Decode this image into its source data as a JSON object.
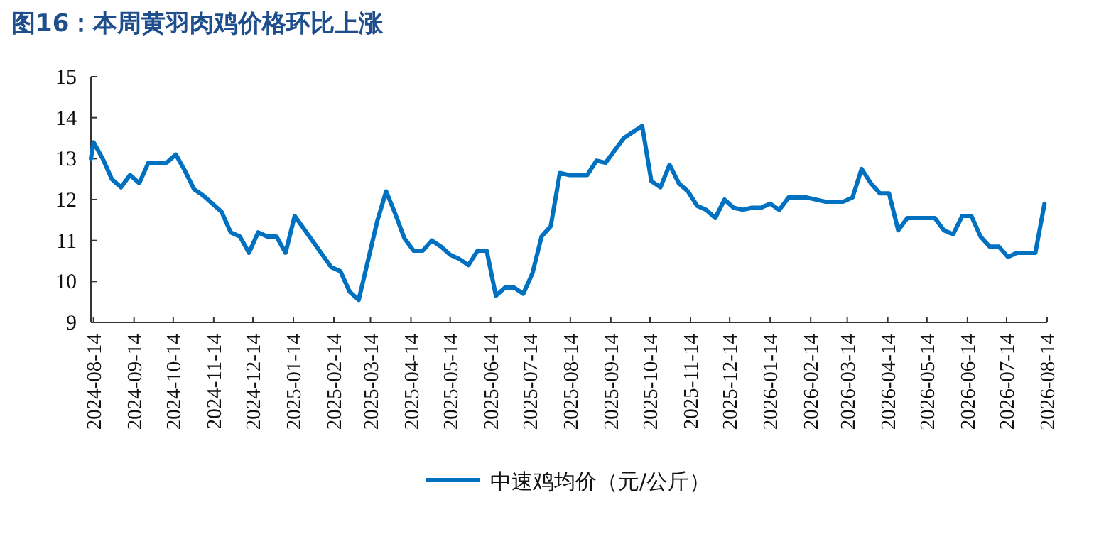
{
  "chart_data": {
    "type": "line",
    "title": "图16：本周黄羽肉鸡价格环比上涨",
    "x": [
      "2024-08-12",
      "2024-08-14",
      "2024-08-21",
      "2024-08-28",
      "2024-09-04",
      "2024-09-11",
      "2024-09-18",
      "2024-09-25",
      "2024-10-09",
      "2024-10-16",
      "2024-10-23",
      "2024-10-30",
      "2024-11-06",
      "2024-11-13",
      "2024-11-20",
      "2024-11-27",
      "2024-12-04",
      "2024-12-11",
      "2024-12-18",
      "2024-12-25",
      "2025-01-01",
      "2025-01-08",
      "2025-01-15",
      "2025-02-12",
      "2025-02-19",
      "2025-02-26",
      "2025-03-05",
      "2025-03-19",
      "2025-03-26",
      "2025-04-02",
      "2025-04-09",
      "2025-04-16",
      "2025-04-23",
      "2025-04-30",
      "2025-05-07",
      "2025-05-14",
      "2025-05-21",
      "2025-05-28",
      "2025-06-04",
      "2025-06-11",
      "2025-06-18",
      "2025-06-25",
      "2025-07-02",
      "2025-07-09",
      "2025-07-16",
      "2025-07-23",
      "2025-07-30",
      "2025-08-06",
      "2025-08-13",
      "2025-08-27",
      "2025-09-03",
      "2025-09-10",
      "2025-09-17",
      "2025-09-24",
      "2025-10-01",
      "2025-10-08",
      "2025-10-15",
      "2025-10-22",
      "2025-10-29",
      "2025-11-05",
      "2025-11-12",
      "2025-11-19",
      "2025-11-26",
      "2025-12-03",
      "2025-12-10",
      "2025-12-17",
      "2025-12-24",
      "2025-12-31",
      "2026-01-07",
      "2026-01-14",
      "2026-01-21",
      "2026-01-28",
      "2026-02-11",
      "2026-02-25",
      "2026-03-11",
      "2026-03-18",
      "2026-03-25",
      "2026-04-01",
      "2026-04-08",
      "2026-04-15",
      "2026-04-22",
      "2026-04-29",
      "2026-05-20",
      "2026-05-27",
      "2026-06-03",
      "2026-06-10",
      "2026-06-17",
      "2026-06-24",
      "2026-07-01",
      "2026-07-08",
      "2026-07-15",
      "2026-07-22",
      "2026-08-05",
      "2026-08-12"
    ],
    "series": [
      {
        "name": "中速鸡均价（元/公斤）",
        "color": "#0070c0",
        "values": [
          13.0,
          13.4,
          13.0,
          12.5,
          12.3,
          12.6,
          12.4,
          12.9,
          12.9,
          13.1,
          12.7,
          12.25,
          12.1,
          11.9,
          11.7,
          11.2,
          11.1,
          10.7,
          11.2,
          11.1,
          11.1,
          10.7,
          11.6,
          10.35,
          10.25,
          9.75,
          9.55,
          11.45,
          12.2,
          11.65,
          11.05,
          10.75,
          10.75,
          11.0,
          10.85,
          10.65,
          10.55,
          10.4,
          10.75,
          10.75,
          9.65,
          9.85,
          9.85,
          9.7,
          10.2,
          11.1,
          11.35,
          12.65,
          12.6,
          12.6,
          12.95,
          12.9,
          13.2,
          13.5,
          13.65,
          13.8,
          12.45,
          12.3,
          12.85,
          12.4,
          12.2,
          11.85,
          11.75,
          11.55,
          12.0,
          11.8,
          11.75,
          11.8,
          11.8,
          11.9,
          11.75,
          12.05,
          12.05,
          11.95,
          11.95,
          12.05,
          12.75,
          12.4,
          12.15,
          12.15,
          11.25,
          11.55,
          11.55,
          11.25,
          11.15,
          11.6,
          11.6,
          11.1,
          10.85,
          10.85,
          10.6,
          10.7,
          10.7,
          11.9
        ]
      }
    ],
    "xlim": [
      "2024-08-12",
      "2026-08-14"
    ],
    "xticks": [
      "2024-08-14",
      "2024-09-14",
      "2024-10-14",
      "2024-11-14",
      "2024-12-14",
      "2025-01-14",
      "2025-02-14",
      "2025-03-14",
      "2025-04-14",
      "2025-05-14",
      "2025-06-14",
      "2025-07-14",
      "2025-08-14",
      "2025-09-14",
      "2025-10-14",
      "2025-11-14",
      "2025-12-14",
      "2026-01-14",
      "2026-02-14",
      "2026-03-14",
      "2026-04-14",
      "2026-05-14",
      "2026-06-14",
      "2026-07-14",
      "2026-08-14"
    ],
    "ylim": [
      9,
      15
    ],
    "yticks": [
      9,
      10,
      11,
      12,
      13,
      14,
      15
    ],
    "grid": false,
    "legend": "bottom",
    "marker": "none",
    "line_style": "solid"
  }
}
